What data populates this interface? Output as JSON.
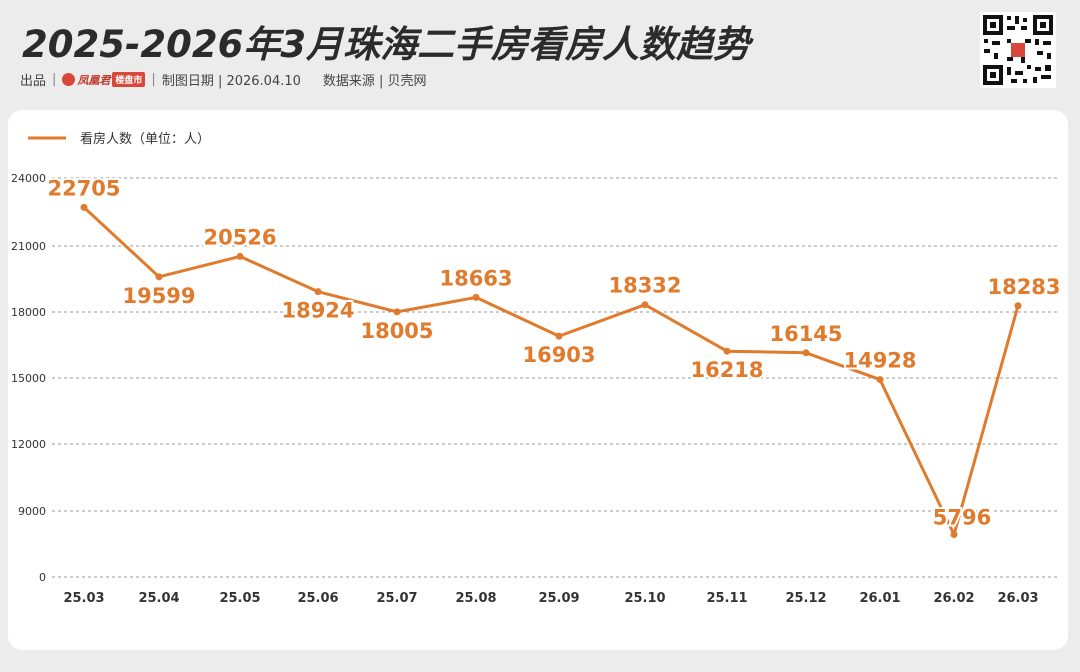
{
  "header": {
    "title": "2025-2026年3月珠海二手房看房人数趋势",
    "source_prefix": "出品",
    "logo_text": "凤凰君",
    "logo_tag": "楼盘市",
    "date_text": "制图日期 | 2026.04.10",
    "source_text": "数据来源 | 贝壳网"
  },
  "qr_icon": "qr-code-icon",
  "colors": {
    "line": "#e07a2c",
    "accent": "#d9473a",
    "background": "#ececec"
  },
  "chart_data": {
    "type": "line",
    "legend": {
      "label": "看房人数（单位：人）",
      "position": "top-left"
    },
    "categories": [
      "25.03",
      "25.04",
      "25.05",
      "25.06",
      "25.07",
      "25.08",
      "25.09",
      "25.10",
      "25.11",
      "25.12",
      "26.01",
      "26.02",
      "26.03"
    ],
    "series": [
      {
        "name": "看房人数（单位：人）",
        "values": [
          22705,
          19599,
          20526,
          18924,
          18005,
          18663,
          16903,
          18332,
          16218,
          16145,
          14928,
          5796,
          18283
        ]
      }
    ],
    "yticks": [
      "24000",
      "21000",
      "18000",
      "15000",
      "12000",
      "9000",
      "0"
    ],
    "grid": true
  }
}
